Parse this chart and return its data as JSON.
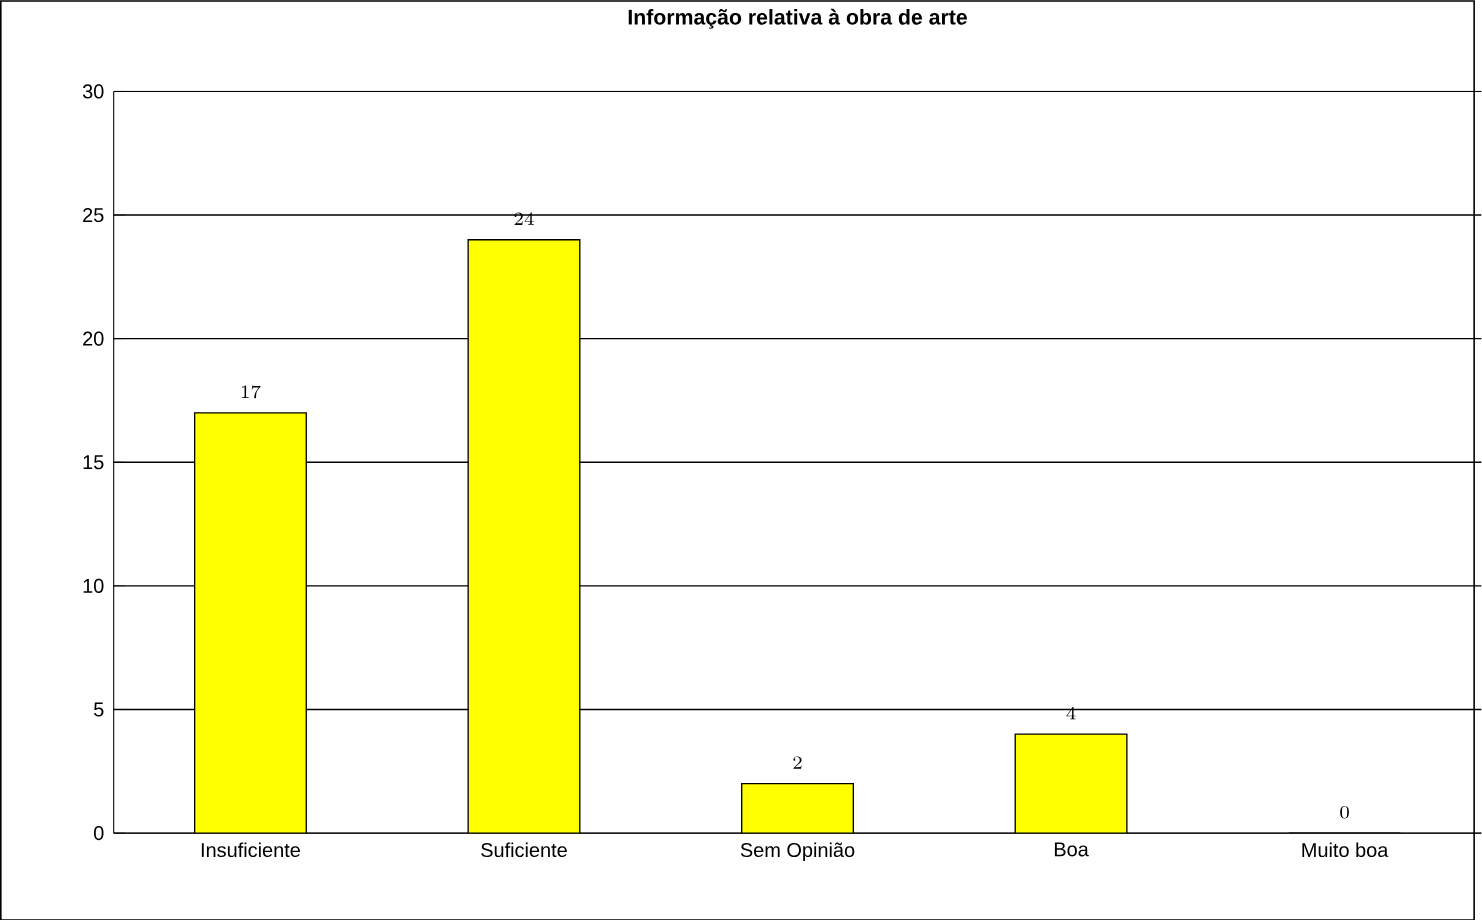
{
  "chart_data": {
    "type": "bar",
    "title": "Informação relativa à obra de arte",
    "categories": [
      "Insuficiente",
      "Suficiente",
      "Sem Opinião",
      "Boa",
      "Muito boa"
    ],
    "values": [
      17,
      24,
      2,
      4,
      0
    ],
    "color": "#ffff00",
    "ylim": [
      0,
      30
    ],
    "yticks": [
      0,
      5,
      10,
      15,
      20,
      25,
      30
    ],
    "grid": "y",
    "data_labels": true
  }
}
